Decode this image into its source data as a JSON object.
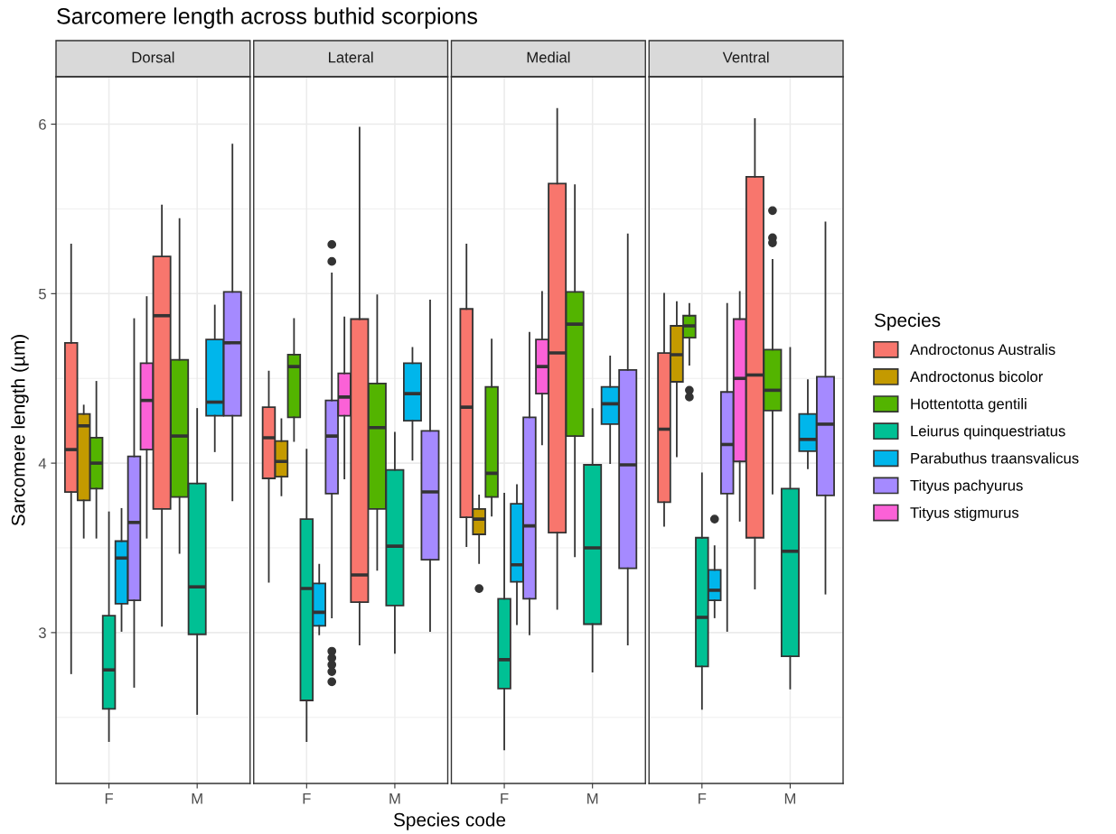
{
  "chart_data": [
    {
      "type": "box",
      "title": "Dorsal",
      "annotations": [
        "Sarcomere length across buthid scorpions",
        "Species code"
      ],
      "ylabel": "Sarcomere length (µm)",
      "legend": "right",
      "legend_title": "Species",
      "categories": [
        "F",
        "M"
      ],
      "ylim": [
        2.11,
        6.28
      ],
      "yticks": [
        3,
        4,
        5,
        6
      ],
      "grid": true,
      "series": [
        {
          "name": "Androctonus Australis",
          "color": "#f8766d",
          "boxes": [
            {
              "low": 2.76,
              "q1": 3.83,
              "median": 4.08,
              "q3": 4.71,
              "high": 5.29
            },
            {
              "low": 3.04,
              "q1": 3.73,
              "median": 4.87,
              "q3": 5.22,
              "high": 5.52
            }
          ]
        },
        {
          "name": "Androctonus bicolor",
          "color": "#c49a00",
          "boxes": [
            {
              "low": 3.56,
              "q1": 3.78,
              "median": 4.22,
              "q3": 4.29,
              "high": 4.34
            },
            null
          ]
        },
        {
          "name": "Hottentotta gentili",
          "color": "#53b400",
          "boxes": [
            {
              "low": 3.56,
              "q1": 3.85,
              "median": 4.0,
              "q3": 4.15,
              "high": 4.48
            },
            {
              "low": 3.47,
              "q1": 3.8,
              "median": 4.16,
              "q3": 4.61,
              "high": 5.44
            }
          ]
        },
        {
          "name": "Leiurus quinquestriatus",
          "color": "#00c094",
          "boxes": [
            {
              "low": 2.36,
              "q1": 2.55,
              "median": 2.78,
              "q3": 3.1,
              "high": 3.71
            },
            {
              "low": 2.52,
              "q1": 2.99,
              "median": 3.27,
              "q3": 3.88,
              "high": 4.32
            }
          ]
        },
        {
          "name": "Parabuthus traansvalicus",
          "color": "#00b6eb",
          "boxes": [
            {
              "low": 3.01,
              "q1": 3.17,
              "median": 3.44,
              "q3": 3.54,
              "high": 3.73
            },
            {
              "low": 4.07,
              "q1": 4.28,
              "median": 4.36,
              "q3": 4.73,
              "high": 4.93
            }
          ]
        },
        {
          "name": "Tityus pachyurus",
          "color": "#a58aff",
          "boxes": [
            {
              "low": 2.68,
              "q1": 3.19,
              "median": 3.65,
              "q3": 4.04,
              "high": 4.85
            },
            {
              "low": 3.78,
              "q1": 4.28,
              "median": 4.71,
              "q3": 5.01,
              "high": 5.88
            }
          ]
        },
        {
          "name": "Tityus stigmurus",
          "color": "#fb61d7",
          "boxes": [
            {
              "low": 3.56,
              "q1": 4.08,
              "median": 4.37,
              "q3": 4.59,
              "high": 4.98
            },
            null
          ]
        }
      ]
    },
    {
      "type": "box",
      "title": "Lateral",
      "categories": [
        "F",
        "M"
      ],
      "ylim": [
        2.11,
        6.28
      ],
      "yticks": [
        3,
        4,
        5,
        6
      ],
      "grid": true,
      "tick_labels": "x",
      "series": [
        {
          "color": "#f8766d",
          "boxes": [
            {
              "low": 3.3,
              "q1": 3.91,
              "median": 4.15,
              "q3": 4.33,
              "high": 4.54
            },
            {
              "low": 2.93,
              "q1": 3.18,
              "median": 3.34,
              "q3": 4.85,
              "high": 5.98
            }
          ]
        },
        {
          "color": "#c49a00",
          "boxes": [
            {
              "low": 3.81,
              "q1": 3.92,
              "median": 4.01,
              "q3": 4.13,
              "high": 4.26
            },
            null
          ]
        },
        {
          "color": "#53b400",
          "boxes": [
            {
              "low": 4.13,
              "q1": 4.27,
              "median": 4.57,
              "q3": 4.64,
              "high": 4.85
            },
            {
              "low": 3.37,
              "q1": 3.73,
              "median": 4.21,
              "q3": 4.47,
              "high": 4.99
            }
          ]
        },
        {
          "color": "#00c094",
          "boxes": [
            {
              "low": 2.36,
              "q1": 2.6,
              "median": 3.26,
              "q3": 3.67,
              "high": 4.08
            },
            {
              "low": 2.88,
              "q1": 3.16,
              "median": 3.51,
              "q3": 3.96,
              "high": 4.18
            }
          ]
        },
        {
          "color": "#00b6eb",
          "boxes": [
            {
              "low": 2.99,
              "q1": 3.04,
              "median": 3.12,
              "q3": 3.29,
              "high": 3.4
            },
            {
              "low": 4.02,
              "q1": 4.25,
              "median": 4.41,
              "q3": 4.59,
              "high": 4.68
            }
          ]
        },
        {
          "color": "#a58aff",
          "boxes": [
            {
              "low": 3.09,
              "q1": 3.82,
              "median": 4.16,
              "q3": 4.37,
              "high": 5.12,
              "outliers": [
                5.29,
                5.19,
                2.89,
                2.85,
                2.81,
                2.77,
                2.71
              ]
            },
            {
              "low": 3.01,
              "q1": 3.43,
              "median": 3.83,
              "q3": 4.19,
              "high": 4.96
            }
          ]
        },
        {
          "color": "#fb61d7",
          "boxes": [
            {
              "low": 3.91,
              "q1": 4.28,
              "median": 4.39,
              "q3": 4.53,
              "high": 4.86
            },
            null
          ]
        }
      ]
    },
    {
      "type": "box",
      "title": "Medial",
      "categories": [
        "F",
        "M"
      ],
      "ylim": [
        2.11,
        6.28
      ],
      "yticks": [
        3,
        4,
        5,
        6
      ],
      "grid": true,
      "tick_labels": "x",
      "series": [
        {
          "color": "#f8766d",
          "boxes": [
            {
              "low": 3.51,
              "q1": 3.68,
              "median": 4.33,
              "q3": 4.91,
              "high": 5.29
            },
            {
              "low": 3.14,
              "q1": 3.59,
              "median": 4.65,
              "q3": 5.65,
              "high": 6.09
            }
          ]
        },
        {
          "color": "#c49a00",
          "boxes": [
            {
              "low": 3.41,
              "q1": 3.58,
              "median": 3.67,
              "q3": 3.73,
              "high": 3.81,
              "outliers": [
                3.26
              ]
            },
            null
          ]
        },
        {
          "color": "#53b400",
          "boxes": [
            {
              "low": 3.69,
              "q1": 3.8,
              "median": 3.94,
              "q3": 4.45,
              "high": 4.73
            },
            {
              "low": 3.45,
              "q1": 4.16,
              "median": 4.82,
              "q3": 5.01,
              "high": 5.64
            }
          ]
        },
        {
          "color": "#00c094",
          "boxes": [
            {
              "low": 2.31,
              "q1": 2.67,
              "median": 2.84,
              "q3": 3.2,
              "high": 3.82
            },
            {
              "low": 2.77,
              "q1": 3.05,
              "median": 3.5,
              "q3": 3.99,
              "high": 4.32
            }
          ]
        },
        {
          "color": "#00b6eb",
          "boxes": [
            {
              "low": 3.05,
              "q1": 3.3,
              "median": 3.4,
              "q3": 3.76,
              "high": 3.87
            },
            {
              "low": 4.0,
              "q1": 4.23,
              "median": 4.35,
              "q3": 4.45,
              "high": 4.63
            }
          ]
        },
        {
          "color": "#a58aff",
          "boxes": [
            {
              "low": 2.99,
              "q1": 3.2,
              "median": 3.63,
              "q3": 4.27,
              "high": 4.77
            },
            {
              "low": 2.93,
              "q1": 3.38,
              "median": 3.99,
              "q3": 4.55,
              "high": 5.35
            }
          ]
        },
        {
          "color": "#fb61d7",
          "boxes": [
            {
              "low": 4.11,
              "q1": 4.41,
              "median": 4.57,
              "q3": 4.73,
              "high": 5.01
            },
            null
          ]
        }
      ]
    },
    {
      "type": "box",
      "title": "Ventral",
      "categories": [
        "F",
        "M"
      ],
      "ylim": [
        2.11,
        6.28
      ],
      "yticks": [
        3,
        4,
        5,
        6
      ],
      "grid": true,
      "tick_labels": "x",
      "series": [
        {
          "color": "#f8766d",
          "boxes": [
            {
              "low": 3.63,
              "q1": 3.77,
              "median": 4.2,
              "q3": 4.65,
              "high": 5.0
            },
            {
              "low": 3.26,
              "q1": 3.56,
              "median": 4.52,
              "q3": 5.69,
              "high": 6.03
            }
          ]
        },
        {
          "color": "#c49a00",
          "boxes": [
            {
              "low": 4.04,
              "q1": 4.48,
              "median": 4.64,
              "q3": 4.81,
              "high": 4.95
            },
            null
          ]
        },
        {
          "color": "#53b400",
          "boxes": [
            {
              "low": 4.58,
              "q1": 4.74,
              "median": 4.81,
              "q3": 4.87,
              "high": 4.94,
              "outliers": [
                4.43,
                4.39
              ]
            },
            {
              "low": 3.82,
              "q1": 4.31,
              "median": 4.43,
              "q3": 4.67,
              "high": 5.2,
              "outliers": [
                5.49,
                5.33,
                5.3
              ]
            }
          ]
        },
        {
          "color": "#00c094",
          "boxes": [
            {
              "low": 2.55,
              "q1": 2.8,
              "median": 3.09,
              "q3": 3.56,
              "high": 3.94
            },
            {
              "low": 2.67,
              "q1": 2.86,
              "median": 3.48,
              "q3": 3.85,
              "high": 4.68
            }
          ]
        },
        {
          "color": "#00b6eb",
          "boxes": [
            {
              "low": 3.09,
              "q1": 3.19,
              "median": 3.25,
              "q3": 3.37,
              "high": 3.51,
              "outliers": [
                3.67
              ]
            },
            {
              "low": 3.97,
              "q1": 4.07,
              "median": 4.14,
              "q3": 4.29,
              "high": 4.49
            }
          ]
        },
        {
          "color": "#a58aff",
          "boxes": [
            {
              "low": 3.01,
              "q1": 3.82,
              "median": 4.11,
              "q3": 4.42,
              "high": 4.94
            },
            {
              "low": 3.23,
              "q1": 3.81,
              "median": 4.23,
              "q3": 4.51,
              "high": 5.42
            }
          ]
        },
        {
          "color": "#fb61d7",
          "boxes": [
            {
              "low": 3.66,
              "q1": 4.01,
              "median": 4.5,
              "q3": 4.85,
              "high": 5.01
            },
            null
          ]
        }
      ]
    }
  ]
}
